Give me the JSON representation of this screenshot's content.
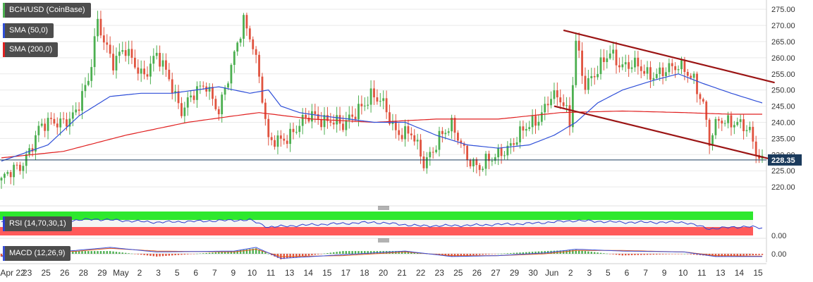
{
  "legend": {
    "title": "BCH/USD (CoinBase)",
    "sma50": "SMA (50,0)",
    "sma200": "SMA (200,0)",
    "rsi": "RSI (14,70,30,1)",
    "macd": "MACD (12,26,9)"
  },
  "colors": {
    "up": "#4caf50",
    "down": "#e0533f",
    "sma50": "#2f4fd8",
    "sma200": "#e02020",
    "trendline": "#9b1414",
    "price_line": "#1a3a5c",
    "price_tag": "#1a3a5c",
    "rsi_line": "#2f3fd0",
    "rsi_overbought": "#2ee82e",
    "rsi_oversold": "#ff5a5a",
    "macd_line": "#3a4fd8",
    "macd_signal": "#e05a1a"
  },
  "chart_data": {
    "type": "candlestick",
    "symbol": "BCH/USD (CoinBase)",
    "current_price": 228.35,
    "current_price_label": "228.35",
    "y_range": [
      215,
      277
    ],
    "y_ticks": [
      "220.00",
      "225.00",
      "230.00",
      "235.00",
      "240.00",
      "245.00",
      "250.00",
      "255.00",
      "260.00",
      "265.00",
      "270.00",
      "275.00"
    ],
    "x_labels": [
      "Apr 22",
      "23",
      "25",
      "26",
      "28",
      "29",
      "May",
      "2",
      "3",
      "5",
      "6",
      "7",
      "9",
      "10",
      "11",
      "13",
      "14",
      "15",
      "17",
      "18",
      "20",
      "21",
      "22",
      "23",
      "25",
      "26",
      "27",
      "29",
      "30",
      "Jun",
      "2",
      "3",
      "5",
      "6",
      "7",
      "9",
      "10",
      "11",
      "13",
      "14",
      "15"
    ],
    "price_path": [
      [
        0,
        222
      ],
      [
        6,
        226
      ],
      [
        12,
        238
      ],
      [
        18,
        240
      ],
      [
        24,
        243
      ],
      [
        28,
        252
      ],
      [
        31,
        272
      ],
      [
        36,
        258
      ],
      [
        40,
        262
      ],
      [
        46,
        255
      ],
      [
        50,
        260
      ],
      [
        54,
        254
      ],
      [
        58,
        244
      ],
      [
        62,
        248
      ],
      [
        66,
        252
      ],
      [
        70,
        244
      ],
      [
        74,
        256
      ],
      [
        78,
        272
      ],
      [
        81,
        265
      ],
      [
        83,
        254
      ],
      [
        86,
        233
      ],
      [
        90,
        235
      ],
      [
        95,
        238
      ],
      [
        100,
        242
      ],
      [
        106,
        241
      ],
      [
        110,
        238
      ],
      [
        115,
        245
      ],
      [
        119,
        248
      ],
      [
        123,
        245
      ],
      [
        127,
        238
      ],
      [
        132,
        236
      ],
      [
        136,
        227
      ],
      [
        141,
        236
      ],
      [
        145,
        238
      ],
      [
        150,
        230
      ],
      [
        154,
        226
      ],
      [
        158,
        228
      ],
      [
        162,
        232
      ],
      [
        167,
        236
      ],
      [
        172,
        240
      ],
      [
        177,
        249
      ],
      [
        181,
        245
      ],
      [
        183,
        239
      ],
      [
        185,
        266
      ],
      [
        188,
        252
      ],
      [
        192,
        255
      ],
      [
        196,
        262
      ],
      [
        200,
        258
      ],
      [
        204,
        257
      ],
      [
        208,
        255
      ],
      [
        212,
        256
      ],
      [
        216,
        256
      ],
      [
        220,
        257
      ],
      [
        223,
        254
      ],
      [
        226,
        245
      ],
      [
        228,
        233
      ],
      [
        231,
        241
      ],
      [
        235,
        241
      ],
      [
        238,
        239
      ],
      [
        241,
        236
      ],
      [
        243,
        231
      ],
      [
        245,
        228.35
      ]
    ],
    "sma50_path": [
      [
        0,
        228
      ],
      [
        15,
        233
      ],
      [
        25,
        242
      ],
      [
        35,
        248
      ],
      [
        45,
        249
      ],
      [
        55,
        249
      ],
      [
        70,
        251
      ],
      [
        75,
        250
      ],
      [
        80,
        249
      ],
      [
        86,
        250
      ],
      [
        90,
        245
      ],
      [
        96,
        243
      ],
      [
        103,
        242
      ],
      [
        112,
        241
      ],
      [
        120,
        240
      ],
      [
        130,
        240
      ],
      [
        140,
        236
      ],
      [
        150,
        233
      ],
      [
        160,
        232
      ],
      [
        170,
        233
      ],
      [
        178,
        236
      ],
      [
        185,
        240
      ],
      [
        192,
        246
      ],
      [
        200,
        250
      ],
      [
        210,
        253
      ],
      [
        218,
        255
      ],
      [
        226,
        252
      ],
      [
        235,
        249
      ],
      [
        245,
        246
      ]
    ],
    "sma200_path": [
      [
        0,
        229
      ],
      [
        20,
        231
      ],
      [
        40,
        236
      ],
      [
        60,
        240
      ],
      [
        75,
        242
      ],
      [
        83,
        243
      ],
      [
        100,
        241
      ],
      [
        120,
        240
      ],
      [
        140,
        241
      ],
      [
        160,
        241
      ],
      [
        180,
        243
      ],
      [
        200,
        243.5
      ],
      [
        220,
        243
      ],
      [
        235,
        242.5
      ],
      [
        245,
        242.5
      ]
    ],
    "trendlines": [
      {
        "name": "upper",
        "from": [
          181,
          268.5
        ],
        "to": [
          249,
          252.3
        ]
      },
      {
        "name": "lower",
        "from": [
          178,
          245
        ],
        "to": [
          249,
          228.3
        ]
      }
    ],
    "rsi": {
      "label": "RSI (14,70,30,1)",
      "path": [
        [
          0,
          55
        ],
        [
          20,
          60
        ],
        [
          30,
          68
        ],
        [
          50,
          55
        ],
        [
          80,
          65
        ],
        [
          86,
          35
        ],
        [
          100,
          45
        ],
        [
          120,
          55
        ],
        [
          135,
          40
        ],
        [
          150,
          42
        ],
        [
          170,
          50
        ],
        [
          185,
          62
        ],
        [
          200,
          55
        ],
        [
          220,
          55
        ],
        [
          228,
          28
        ],
        [
          240,
          38
        ],
        [
          245,
          30
        ]
      ]
    },
    "macd": {
      "label": "MACD (12,26,9)",
      "ticks": [
        "0.00"
      ],
      "macd_path": [
        [
          0,
          -1.5
        ],
        [
          25,
          2
        ],
        [
          35,
          3.5
        ],
        [
          50,
          1
        ],
        [
          75,
          1.5
        ],
        [
          82,
          3.5
        ],
        [
          90,
          -2.5
        ],
        [
          110,
          -0.5
        ],
        [
          130,
          1.5
        ],
        [
          145,
          -1.5
        ],
        [
          160,
          -1
        ],
        [
          175,
          0.5
        ],
        [
          185,
          2.5
        ],
        [
          200,
          1.5
        ],
        [
          220,
          1
        ],
        [
          230,
          -1.5
        ],
        [
          245,
          -1.5
        ]
      ],
      "signal_path": [
        [
          0,
          -1
        ],
        [
          25,
          1.5
        ],
        [
          35,
          3
        ],
        [
          50,
          1.5
        ],
        [
          75,
          1
        ],
        [
          82,
          2.5
        ],
        [
          90,
          -1.5
        ],
        [
          110,
          -1
        ],
        [
          130,
          1
        ],
        [
          145,
          -1
        ],
        [
          160,
          -1
        ],
        [
          175,
          0
        ],
        [
          185,
          1.8
        ],
        [
          200,
          1.8
        ],
        [
          220,
          1
        ],
        [
          230,
          -1
        ],
        [
          245,
          -1.3
        ]
      ]
    }
  }
}
